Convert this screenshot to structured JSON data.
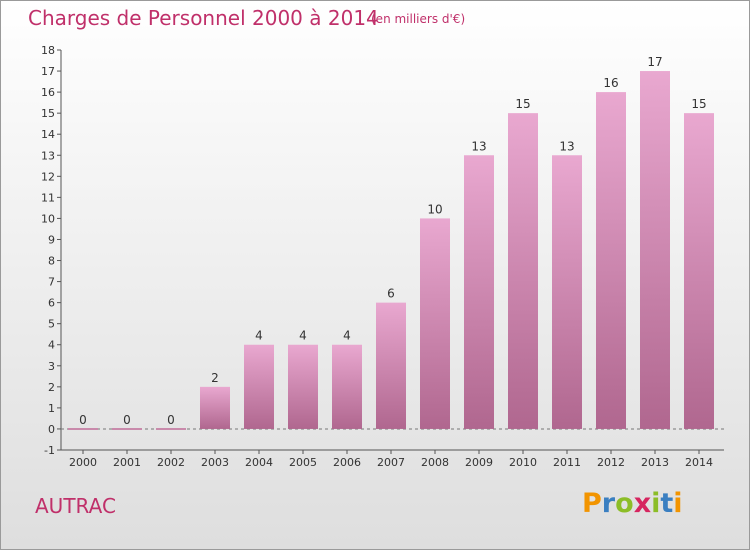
{
  "header": {
    "title": "Charges de Personnel 2000 à 2014",
    "unit": "(en milliers d'€)"
  },
  "footer": {
    "place": "AUTRAC",
    "logo_letters": [
      "P",
      "r",
      "o",
      "x",
      "i",
      "t",
      "i"
    ],
    "logo_colors": [
      "#f29400",
      "#3a7fc1",
      "#8cbd27",
      "#d6255f",
      "#8cbd27",
      "#3a7fc1",
      "#f29400"
    ]
  },
  "colors": {
    "bar_light": "#e9a8d0",
    "bar_dark": "#b0678f",
    "title": "#c0306a"
  },
  "chart_data": {
    "type": "bar",
    "categories": [
      "2000",
      "2001",
      "2002",
      "2003",
      "2004",
      "2005",
      "2006",
      "2007",
      "2008",
      "2009",
      "2010",
      "2011",
      "2012",
      "2013",
      "2014"
    ],
    "values": [
      0,
      0,
      0,
      2,
      4,
      4,
      4,
      6,
      10,
      13,
      15,
      13,
      16,
      17,
      15
    ],
    "ylim": [
      -1,
      18
    ],
    "yticks": [
      "-1",
      "0",
      "1",
      "2",
      "3",
      "4",
      "5",
      "6",
      "7",
      "8",
      "9",
      "10",
      "11",
      "12",
      "13",
      "14",
      "15",
      "16",
      "17",
      "18"
    ],
    "xlabel": "",
    "ylabel": "",
    "grid": false
  }
}
